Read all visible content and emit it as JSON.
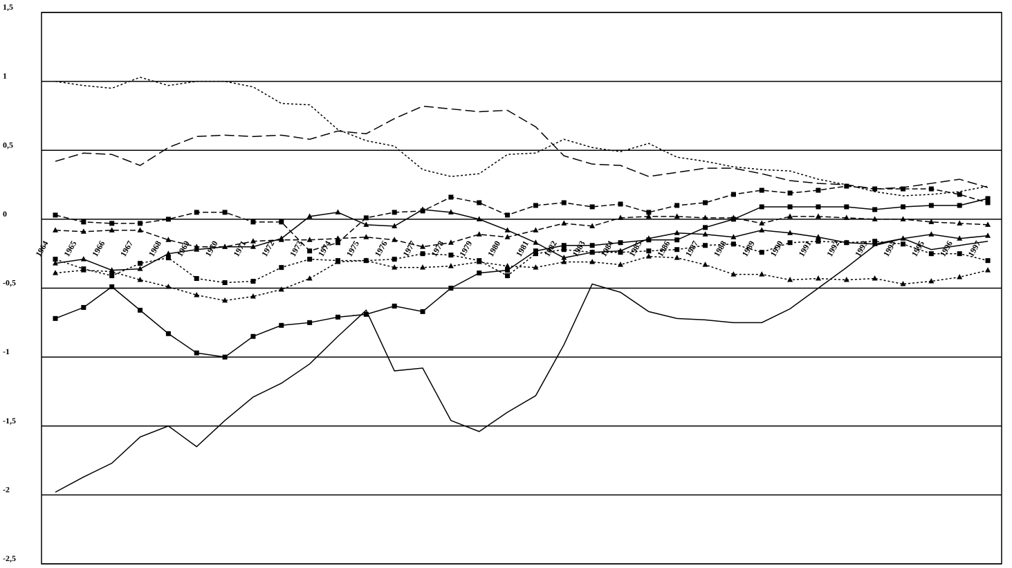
{
  "chart_data": {
    "type": "line",
    "categories": [
      "1964",
      "1965",
      "1966",
      "1967",
      "1968",
      "1969",
      "1970",
      "1971",
      "1972",
      "1973",
      "1974",
      "1975",
      "1976",
      "1977",
      "1978",
      "1979",
      "1980",
      "1981",
      "1982",
      "1983",
      "1984",
      "1985",
      "1986",
      "1987",
      "1988",
      "1989",
      "1990",
      "1991",
      "1992",
      "1993",
      "1994",
      "1995",
      "1996",
      "1997"
    ],
    "ylim": [
      -2.5,
      1.5
    ],
    "yticks": [
      {
        "value": 1.5,
        "label": "1,5"
      },
      1,
      {
        "value": 0.5,
        "label": "0,5"
      },
      0,
      {
        "value": -0.5,
        "label": "-0,5"
      },
      -1,
      {
        "value": -1.5,
        "label": "-1,5"
      },
      -2,
      {
        "value": -2.5,
        "label": "-2,5"
      }
    ],
    "grid": true,
    "series": [
      {
        "color": "#000000",
        "dash": "solid",
        "marker": "none",
        "values": [
          -1.98,
          -1.87,
          -1.77,
          -1.58,
          -1.5,
          -1.65,
          -1.46,
          -1.29,
          -1.19,
          -1.05,
          -0.85,
          -0.66,
          -1.1,
          -1.08,
          -1.46,
          -1.54,
          -1.4,
          -1.28,
          -0.91,
          -0.47,
          -0.53,
          -0.67,
          -0.72,
          -0.73,
          -0.75,
          -0.75,
          -0.65,
          -0.5,
          -0.35,
          -0.19,
          -0.14,
          -0.22,
          -0.19,
          -0.16
        ]
      },
      {
        "color": "#000000",
        "dash": "solid",
        "marker": "square",
        "values": [
          -0.72,
          -0.64,
          -0.49,
          -0.66,
          -0.83,
          -0.97,
          -1.0,
          -0.85,
          -0.77,
          -0.75,
          -0.71,
          -0.69,
          -0.63,
          -0.67,
          -0.5,
          -0.39,
          -0.37,
          -0.23,
          -0.19,
          -0.19,
          -0.17,
          -0.15,
          -0.15,
          -0.06,
          0.0,
          0.09,
          0.09,
          0.09,
          0.09,
          0.07,
          0.09,
          0.1,
          0.1,
          0.15
        ]
      },
      {
        "color": "#000000",
        "dash": "dotted",
        "marker": "none",
        "values": [
          1.0,
          0.97,
          0.95,
          1.03,
          0.97,
          1.0,
          1.0,
          0.96,
          0.84,
          0.83,
          0.65,
          0.57,
          0.53,
          0.36,
          0.31,
          0.33,
          0.47,
          0.48,
          0.58,
          0.52,
          0.49,
          0.55,
          0.45,
          0.42,
          0.38,
          0.36,
          0.35,
          0.29,
          0.25,
          0.2,
          0.17,
          0.18,
          0.2,
          0.24
        ]
      },
      {
        "color": "#000000",
        "dash": "long",
        "marker": "none",
        "values": [
          0.42,
          0.48,
          0.47,
          0.39,
          0.52,
          0.6,
          0.61,
          0.6,
          0.61,
          0.58,
          0.64,
          0.62,
          0.73,
          0.82,
          0.8,
          0.78,
          0.79,
          0.67,
          0.46,
          0.4,
          0.39,
          0.31,
          0.34,
          0.37,
          0.37,
          0.33,
          0.28,
          0.26,
          0.25,
          0.22,
          0.23,
          0.26,
          0.29,
          0.23
        ]
      },
      {
        "color": "#000000",
        "dash": "dashed",
        "marker": "square",
        "values": [
          0.03,
          -0.02,
          -0.03,
          -0.03,
          0.0,
          0.05,
          0.05,
          -0.02,
          -0.02,
          -0.23,
          -0.17,
          0.01,
          0.05,
          0.06,
          0.16,
          0.12,
          0.03,
          0.1,
          0.12,
          0.09,
          0.11,
          0.05,
          0.1,
          0.12,
          0.18,
          0.21,
          0.19,
          0.21,
          0.24,
          0.22,
          0.22,
          0.22,
          0.18,
          0.12
        ]
      },
      {
        "color": "#000000",
        "dash": "dashed",
        "marker": "triangle",
        "values": [
          -0.08,
          -0.09,
          -0.08,
          -0.08,
          -0.15,
          -0.2,
          -0.2,
          -0.16,
          -0.15,
          -0.15,
          -0.14,
          -0.13,
          -0.15,
          -0.2,
          -0.17,
          -0.11,
          -0.13,
          -0.08,
          -0.03,
          -0.05,
          0.01,
          0.02,
          0.02,
          0.01,
          0.01,
          -0.03,
          0.02,
          0.02,
          0.01,
          0.0,
          0.0,
          -0.02,
          -0.03,
          -0.04
        ]
      },
      {
        "color": "#000000",
        "dash": "solid",
        "marker": "triangle",
        "values": [
          -0.32,
          -0.29,
          -0.37,
          -0.36,
          -0.25,
          -0.22,
          -0.2,
          -0.2,
          -0.14,
          0.02,
          0.05,
          -0.04,
          -0.05,
          0.07,
          0.05,
          0.0,
          -0.08,
          -0.17,
          -0.28,
          -0.24,
          -0.23,
          -0.14,
          -0.1,
          -0.11,
          -0.13,
          -0.08,
          -0.1,
          -0.13,
          -0.17,
          -0.18,
          -0.14,
          -0.11,
          -0.14,
          -0.12
        ]
      },
      {
        "color": "#000000",
        "dash": "dotted",
        "marker": "triangle",
        "values": [
          -0.39,
          -0.37,
          -0.38,
          -0.44,
          -0.49,
          -0.55,
          -0.59,
          -0.56,
          -0.51,
          -0.43,
          -0.31,
          -0.3,
          -0.35,
          -0.35,
          -0.34,
          -0.31,
          -0.34,
          -0.35,
          -0.31,
          -0.31,
          -0.33,
          -0.27,
          -0.28,
          -0.33,
          -0.4,
          -0.4,
          -0.44,
          -0.43,
          -0.44,
          -0.43,
          -0.47,
          -0.45,
          -0.42,
          -0.37
        ]
      },
      {
        "color": "#000000",
        "dash": "dotted",
        "marker": "square",
        "values": [
          -0.29,
          -0.36,
          -0.41,
          -0.32,
          -0.28,
          -0.43,
          -0.46,
          -0.45,
          -0.35,
          -0.29,
          -0.3,
          -0.3,
          -0.29,
          -0.25,
          -0.26,
          -0.3,
          -0.41,
          -0.25,
          -0.22,
          -0.24,
          -0.24,
          -0.23,
          -0.22,
          -0.19,
          -0.18,
          -0.24,
          -0.17,
          -0.16,
          -0.17,
          -0.16,
          -0.18,
          -0.25,
          -0.25,
          -0.3
        ]
      }
    ]
  }
}
